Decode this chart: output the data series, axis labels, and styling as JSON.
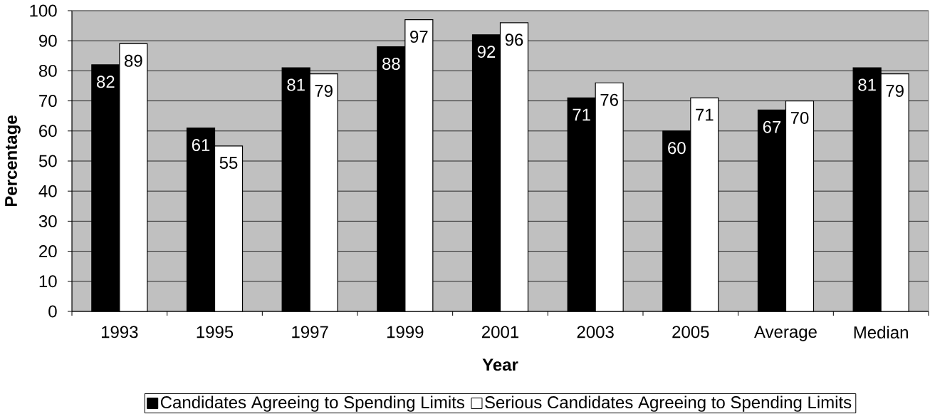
{
  "chart_data": {
    "type": "bar",
    "xlabel": "Year",
    "ylabel": "Percentage",
    "categories": [
      "1993",
      "1995",
      "1997",
      "1999",
      "2001",
      "2003",
      "2005",
      "Average",
      "Median"
    ],
    "series": [
      {
        "name": "Candidates Agreeing to Spending Limits",
        "color": "#000000",
        "values": [
          82,
          61,
          81,
          88,
          92,
          71,
          60,
          67,
          81
        ]
      },
      {
        "name": "Serious Candidates Agreeing to Spending Limits",
        "color": "#ffffff",
        "values": [
          89,
          55,
          79,
          97,
          96,
          76,
          71,
          70,
          79
        ]
      }
    ],
    "ylim": [
      0,
      100
    ],
    "yticks": [
      0,
      10,
      20,
      30,
      40,
      50,
      60,
      70,
      80,
      90,
      100
    ],
    "grid": "y",
    "legend": "bottom",
    "data_labels": true
  }
}
